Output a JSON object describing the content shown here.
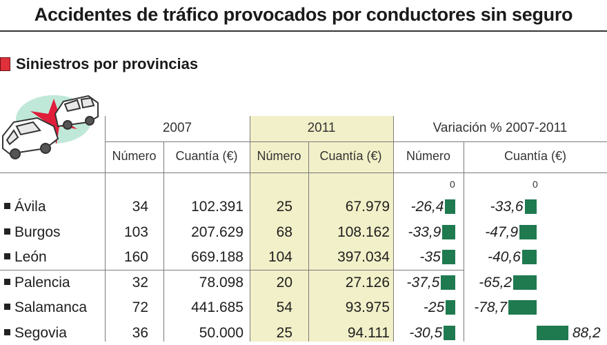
{
  "title": "Accidentes de tráfico provocados por conductores sin seguro",
  "section_label": "Siniestros por provincias",
  "headers": {
    "year_2007": "2007",
    "year_2011": "2011",
    "variation": "Variación % 2007-2011",
    "numero": "Número",
    "cuantia": "Cuantía (€)",
    "zero": "0"
  },
  "colors": {
    "bar": "#1f7a50",
    "highlight_column": "#f2f0c8",
    "section_marker": "#e0303a"
  },
  "illustration_icon": "car-crash-icon",
  "chart_data": {
    "type": "table",
    "columns": [
      "Número 2007",
      "Cuantía (€) 2007",
      "Número 2011",
      "Cuantía (€) 2011",
      "Variación % Número",
      "Variación % Cuantía (€)"
    ],
    "rows": [
      {
        "province": "Ávila",
        "num_2007": "34",
        "cuantia_2007": "102.391",
        "num_2011": "25",
        "cuantia_2011": "67.979",
        "var_num": "-26,4",
        "var_cuantia": "-33,6",
        "var_num_value": -26.4,
        "var_cuantia_value": -33.6
      },
      {
        "province": "Burgos",
        "num_2007": "103",
        "cuantia_2007": "207.629",
        "num_2011": "68",
        "cuantia_2011": "108.162",
        "var_num": "-33,9",
        "var_cuantia": "-47,9",
        "var_num_value": -33.9,
        "var_cuantia_value": -47.9
      },
      {
        "province": "León",
        "num_2007": "160",
        "cuantia_2007": "669.188",
        "num_2011": "104",
        "cuantia_2011": "397.034",
        "var_num": "-35",
        "var_cuantia": "-40,6",
        "var_num_value": -35,
        "var_cuantia_value": -40.6
      },
      {
        "province": "Palencia",
        "num_2007": "32",
        "cuantia_2007": "78.098",
        "num_2011": "20",
        "cuantia_2011": "27.126",
        "var_num": "-37,5",
        "var_cuantia": "-65,2",
        "var_num_value": -37.5,
        "var_cuantia_value": -65.2
      },
      {
        "province": "Salamanca",
        "num_2007": "72",
        "cuantia_2007": "441.685",
        "num_2011": "54",
        "cuantia_2011": "93.975",
        "var_num": "-25",
        "var_cuantia": "-78,7",
        "var_num_value": -25,
        "var_cuantia_value": -78.7
      },
      {
        "province": "Segovia",
        "num_2007": "36",
        "cuantia_2007": "50.000",
        "num_2011": "25",
        "cuantia_2011": "94.111",
        "var_num": "-30,5",
        "var_cuantia": "88,2",
        "var_num_value": -30.5,
        "var_cuantia_value": 88.2
      }
    ]
  }
}
